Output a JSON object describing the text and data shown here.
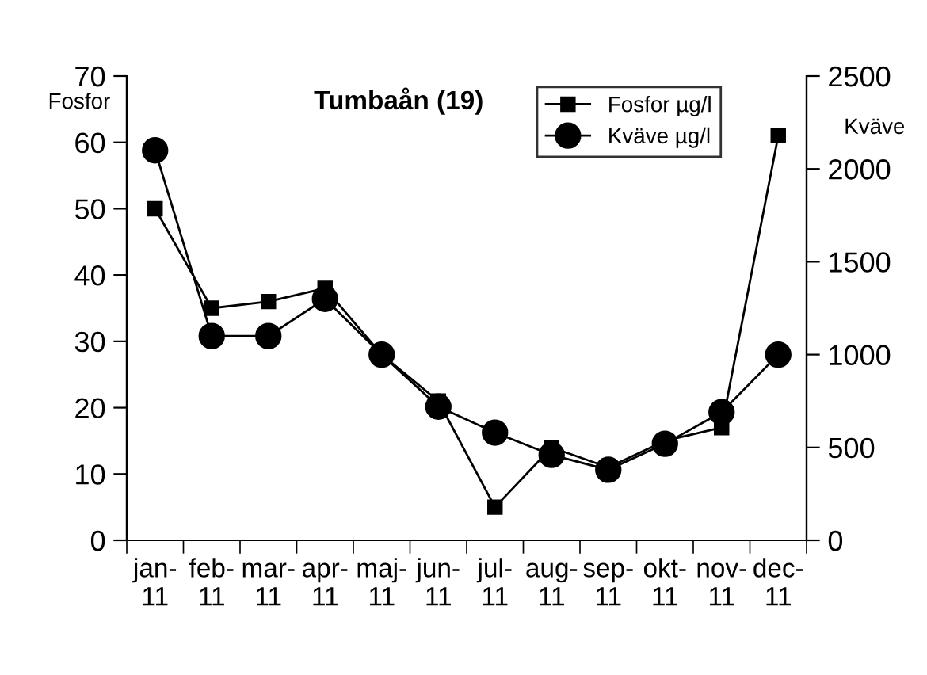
{
  "chart_data": {
    "type": "line",
    "title": "Tumbaån (19)",
    "ylabel": "Fosfor",
    "y2label": "Kväve",
    "categories": [
      "jan-\n11",
      "feb-\n11",
      "mar-\n11",
      "apr-\n11",
      "maj-\n11",
      "jun-\n11",
      "jul-\n11",
      "aug-\n11",
      "sep-\n11",
      "okt-\n11",
      "nov-\n11",
      "dec-\n11"
    ],
    "series": [
      {
        "name": "Fosfor µg/l",
        "color": "#000000",
        "marker": "square",
        "values": [
          50,
          35,
          36,
          38,
          28,
          21,
          5,
          14,
          11,
          15,
          17,
          61
        ]
      },
      {
        "name": "Kväve µg/l",
        "color": "#000000",
        "marker": "circle",
        "axis": "y2",
        "values": [
          2100,
          1100,
          1100,
          1300,
          1000,
          720,
          580,
          460,
          380,
          520,
          690,
          1000
        ]
      }
    ],
    "ylim": [
      0,
      70
    ],
    "yticks": [
      0,
      10,
      20,
      30,
      40,
      50,
      60,
      70
    ],
    "y2lim": [
      0,
      2500
    ],
    "y2ticks": [
      0,
      500,
      1000,
      1500,
      2000,
      2500
    ],
    "grid": false,
    "legend": "top right"
  }
}
